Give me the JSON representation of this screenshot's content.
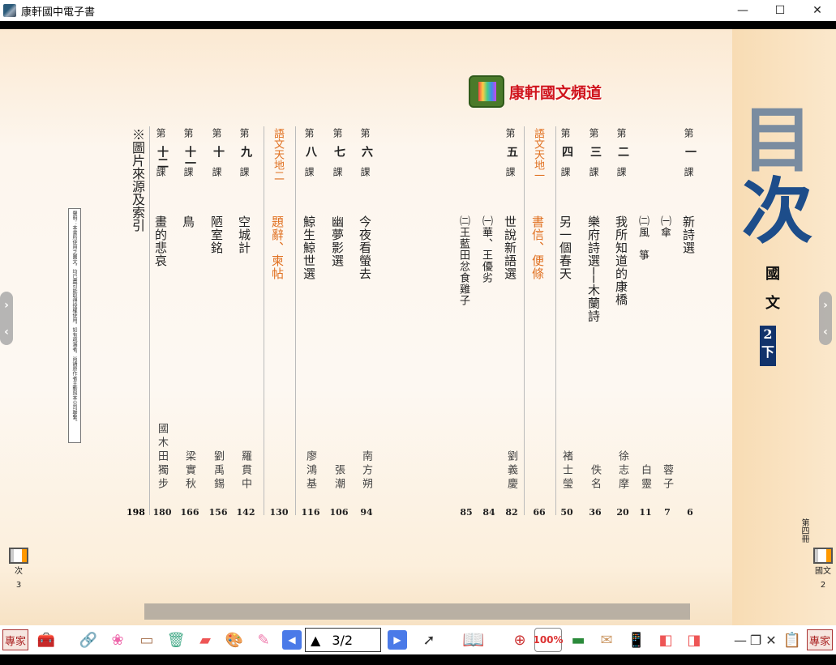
{
  "window": {
    "title": "康軒國中電子書",
    "controls": [
      "—",
      "☐",
      "✕"
    ]
  },
  "logo": {
    "text": "康軒國文頻道"
  },
  "cover": {
    "heading": "目次",
    "subject": "國文",
    "volume": "2下",
    "book_label": "第四冊",
    "book_subject": "國文"
  },
  "notice": "聲明：本書所使用之圖文，均已盡可能取得授權使用，如有疏漏者，尚請原作者主動與本公司聯繫。",
  "toc": [
    {
      "di": "第",
      "num": "一",
      "ke": "課",
      "title": "新詩選",
      "author": "",
      "page": "6",
      "color": "#2a9a5a"
    },
    {
      "title": "㈠傘",
      "author": "蓉子",
      "page": "7",
      "sub": true
    },
    {
      "title": "㈡風　箏",
      "author": "白靈",
      "page": "11",
      "sub": true
    },
    {
      "di": "第",
      "num": "二",
      "ke": "課",
      "title": "我所知道的康橋",
      "author": "徐志摩",
      "page": "20",
      "color": "#2a9a5a"
    },
    {
      "di": "第",
      "num": "三",
      "ke": "課",
      "title": "樂府詩選──木蘭詩",
      "author": "佚名",
      "page": "36",
      "color": "#2a9a5a"
    },
    {
      "di": "第",
      "num": "四",
      "ke": "課",
      "title": "另一個春天",
      "author": "褚士瑩",
      "page": "50",
      "color": "#2a9a5a"
    },
    {
      "section": "語文天地一",
      "title": "書信、便條",
      "author": "",
      "page": "66",
      "color": "#e07020"
    },
    {
      "di": "第",
      "num": "五",
      "ke": "課",
      "title": "世說新語選",
      "author": "劉義慶",
      "page": "82",
      "color": "#b03a8a"
    },
    {
      "title": "㈠華、王優劣",
      "author": "",
      "page": "84",
      "sub": true
    },
    {
      "title": "㈡王藍田忿食雞子",
      "author": "",
      "page": "85",
      "sub": true
    },
    {
      "di": "第",
      "num": "六",
      "ke": "課",
      "title": "今夜看螢去",
      "author": "南方朔",
      "page": "94",
      "color": "#b03a8a"
    },
    {
      "di": "第",
      "num": "七",
      "ke": "課",
      "title": "幽夢影選",
      "author": "張潮",
      "page": "106",
      "color": "#b03a8a"
    },
    {
      "di": "第",
      "num": "八",
      "ke": "課",
      "title": "鯨生鯨世選",
      "author": "廖鴻基",
      "page": "116",
      "color": "#b03a8a"
    },
    {
      "section": "語文天地二",
      "title": "題辭、柬帖",
      "author": "",
      "page": "130",
      "color": "#e07020"
    },
    {
      "di": "第",
      "num": "九",
      "ke": "課",
      "title": "空城計",
      "author": "羅貫中",
      "page": "142",
      "color": "#1a7ab0"
    },
    {
      "di": "第",
      "num": "十",
      "ke": "課",
      "title": "陋室銘",
      "author": "劉禹錫",
      "page": "156",
      "color": "#1a7ab0"
    },
    {
      "di": "第",
      "num": "十一",
      "ke": "課",
      "title": "鳥",
      "author": "梁實秋",
      "page": "166",
      "color": "#1a7ab0"
    },
    {
      "di": "第",
      "num": "十二",
      "ke": "課",
      "title": "畫的悲哀",
      "author": "國木田獨步",
      "page": "180",
      "color": "#1a7ab0"
    }
  ],
  "appendix": {
    "title": "※圖片來源及索引",
    "page": "198"
  },
  "left_corner": {
    "label": "次",
    "page": "3"
  },
  "right_corner": {
    "page": "2"
  },
  "toolbar": {
    "expert_label": "專家",
    "page_indicator": "3/2",
    "zoom_label": "100%",
    "min": "—",
    "restore": "❐",
    "close": "✕"
  }
}
